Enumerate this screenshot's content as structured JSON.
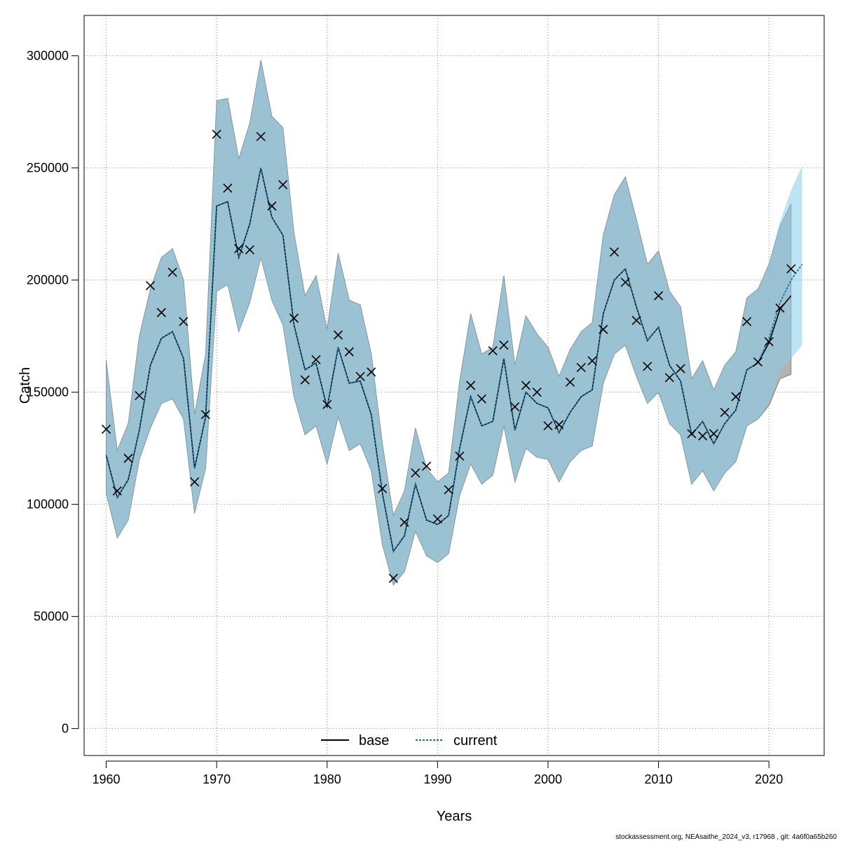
{
  "chart_data": {
    "type": "line",
    "title": "",
    "xlabel": "Years",
    "ylabel": "Catch",
    "xlim": [
      1958,
      2025
    ],
    "ylim": [
      -12000,
      318000
    ],
    "xticks": [
      1960,
      1970,
      1980,
      1990,
      2000,
      2010,
      2020
    ],
    "yticks": [
      0,
      50000,
      100000,
      150000,
      200000,
      250000,
      300000
    ],
    "grid": true,
    "legend": {
      "placement": "bottom-center",
      "entries": [
        "base",
        "current"
      ]
    },
    "x": [
      1960,
      1961,
      1962,
      1963,
      1964,
      1965,
      1966,
      1967,
      1968,
      1969,
      1970,
      1971,
      1972,
      1973,
      1974,
      1975,
      1976,
      1977,
      1978,
      1979,
      1980,
      1981,
      1982,
      1983,
      1984,
      1985,
      1986,
      1987,
      1988,
      1989,
      1990,
      1991,
      1992,
      1993,
      1994,
      1995,
      1996,
      1997,
      1998,
      1999,
      2000,
      2001,
      2002,
      2003,
      2004,
      2005,
      2006,
      2007,
      2008,
      2009,
      2010,
      2011,
      2012,
      2013,
      2014,
      2015,
      2016,
      2017,
      2018,
      2019,
      2020,
      2021,
      2022,
      2023
    ],
    "observed": [
      [
        1960,
        133500
      ],
      [
        1961,
        106000
      ],
      [
        1962,
        120500
      ],
      [
        1963,
        148500
      ],
      [
        1964,
        197500
      ],
      [
        1965,
        185500
      ],
      [
        1966,
        203500
      ],
      [
        1967,
        181500
      ],
      [
        1968,
        110000
      ],
      [
        1969,
        140000
      ],
      [
        1970,
        265000
      ],
      [
        1971,
        241000
      ],
      [
        1972,
        214000
      ],
      [
        1973,
        213500
      ],
      [
        1974,
        264000
      ],
      [
        1975,
        233000
      ],
      [
        1976,
        242500
      ],
      [
        1977,
        183000
      ],
      [
        1978,
        155500
      ],
      [
        1979,
        164500
      ],
      [
        1980,
        144500
      ],
      [
        1981,
        175500
      ],
      [
        1982,
        168000
      ],
      [
        1983,
        157000
      ],
      [
        1984,
        159000
      ],
      [
        1985,
        107000
      ],
      [
        1986,
        67000
      ],
      [
        1987,
        92000
      ],
      [
        1988,
        114000
      ],
      [
        1989,
        117000
      ],
      [
        1990,
        93500
      ],
      [
        1991,
        106500
      ],
      [
        1992,
        121500
      ],
      [
        1993,
        153000
      ],
      [
        1994,
        147000
      ],
      [
        1995,
        168500
      ],
      [
        1996,
        171000
      ],
      [
        1997,
        143500
      ],
      [
        1998,
        153000
      ],
      [
        1999,
        150000
      ],
      [
        2000,
        135000
      ],
      [
        2001,
        135500
      ],
      [
        2002,
        154500
      ],
      [
        2003,
        161000
      ],
      [
        2004,
        164000
      ],
      [
        2005,
        178000
      ],
      [
        2006,
        212500
      ],
      [
        2007,
        199000
      ],
      [
        2008,
        182000
      ],
      [
        2009,
        161500
      ],
      [
        2010,
        193000
      ],
      [
        2011,
        156500
      ],
      [
        2012,
        160500
      ],
      [
        2013,
        131500
      ],
      [
        2014,
        130500
      ],
      [
        2015,
        131500
      ],
      [
        2016,
        141000
      ],
      [
        2017,
        148000
      ],
      [
        2018,
        181500
      ],
      [
        2019,
        163500
      ],
      [
        2020,
        172500
      ],
      [
        2021,
        187500
      ],
      [
        2022,
        205000
      ]
    ],
    "series": [
      {
        "name": "base",
        "color": "#000000",
        "values": [
          122000,
          103000,
          111000,
          133000,
          162000,
          174000,
          177000,
          165000,
          116000,
          139000,
          233000,
          235000,
          210000,
          225000,
          250000,
          228000,
          220000,
          180000,
          160000,
          163000,
          143000,
          170000,
          154000,
          155000,
          140000,
          105000,
          79000,
          86000,
          109000,
          93000,
          91000,
          95000,
          125000,
          148000,
          135000,
          137000,
          165000,
          133000,
          150000,
          145000,
          143000,
          132000,
          141000,
          148000,
          151000,
          185000,
          200000,
          205000,
          188000,
          173000,
          179000,
          162000,
          155000,
          131000,
          137000,
          127000,
          136000,
          142000,
          160000,
          163000,
          172000,
          187000,
          193000,
          null
        ],
        "lower": [
          105000,
          85000,
          93000,
          120000,
          134000,
          145000,
          147000,
          138000,
          96000,
          116000,
          195000,
          198000,
          177000,
          190000,
          210000,
          191000,
          180000,
          148000,
          131000,
          135000,
          118000,
          139000,
          124000,
          127000,
          115000,
          82000,
          64000,
          70000,
          88000,
          77000,
          74000,
          78000,
          104000,
          118000,
          109000,
          113000,
          135000,
          110000,
          125000,
          121000,
          120000,
          110000,
          119000,
          124000,
          126000,
          154000,
          167000,
          171000,
          157000,
          145000,
          150000,
          136000,
          131000,
          109000,
          115000,
          106000,
          114000,
          119000,
          135000,
          138000,
          144000,
          156000,
          158000,
          null
        ],
        "upper": [
          164000,
          124000,
          136000,
          175000,
          196000,
          210000,
          214000,
          200000,
          140000,
          167000,
          280000,
          281000,
          254000,
          270000,
          298000,
          273000,
          268000,
          221000,
          193000,
          202000,
          178000,
          212000,
          191000,
          189000,
          167000,
          127000,
          95000,
          106000,
          134000,
          116000,
          110000,
          114000,
          155000,
          185000,
          167000,
          170000,
          202000,
          162000,
          184000,
          176000,
          170000,
          157000,
          169000,
          177000,
          181000,
          220000,
          238000,
          246000,
          227000,
          207000,
          213000,
          195000,
          188000,
          156000,
          164000,
          151000,
          162000,
          168000,
          192000,
          196000,
          207000,
          224000,
          234000,
          null
        ]
      },
      {
        "name": "current",
        "color": "#1a6f9a",
        "values": [
          122000,
          103000,
          111000,
          133000,
          162000,
          174000,
          177000,
          165000,
          116000,
          139000,
          233000,
          235000,
          210000,
          225000,
          250000,
          228000,
          220000,
          180000,
          160000,
          163000,
          143000,
          170000,
          154000,
          155000,
          140000,
          105000,
          79000,
          86000,
          109000,
          93000,
          91000,
          95000,
          125000,
          148000,
          135000,
          137000,
          165000,
          133000,
          150000,
          145000,
          143000,
          132000,
          141000,
          148000,
          151000,
          185000,
          200000,
          205000,
          188000,
          173000,
          179000,
          162000,
          155000,
          131000,
          137000,
          127000,
          136000,
          142000,
          160000,
          163000,
          174000,
          190000,
          200000,
          207000
        ],
        "lower": [
          105000,
          85000,
          93000,
          120000,
          134000,
          145000,
          147000,
          138000,
          96000,
          116000,
          195000,
          198000,
          177000,
          190000,
          210000,
          191000,
          180000,
          148000,
          131000,
          135000,
          118000,
          139000,
          124000,
          127000,
          115000,
          82000,
          64000,
          70000,
          88000,
          77000,
          74000,
          78000,
          104000,
          118000,
          109000,
          113000,
          135000,
          110000,
          125000,
          121000,
          120000,
          110000,
          119000,
          124000,
          126000,
          154000,
          167000,
          171000,
          157000,
          145000,
          150000,
          136000,
          131000,
          109000,
          115000,
          106000,
          114000,
          119000,
          135000,
          138000,
          145000,
          160000,
          165000,
          171000
        ],
        "upper": [
          164000,
          124000,
          136000,
          175000,
          196000,
          210000,
          214000,
          200000,
          140000,
          167000,
          280000,
          281000,
          254000,
          270000,
          298000,
          273000,
          268000,
          221000,
          193000,
          202000,
          178000,
          212000,
          191000,
          189000,
          167000,
          127000,
          95000,
          106000,
          134000,
          116000,
          110000,
          114000,
          155000,
          185000,
          167000,
          170000,
          202000,
          162000,
          184000,
          176000,
          170000,
          157000,
          169000,
          177000,
          181000,
          220000,
          238000,
          246000,
          227000,
          207000,
          213000,
          195000,
          188000,
          156000,
          164000,
          151000,
          162000,
          168000,
          192000,
          196000,
          208000,
          226000,
          240000,
          251000
        ]
      }
    ],
    "colors": {
      "base_band": "#9a9a9a",
      "current_band": "#87ceeb",
      "overlap_band": "#a5c3d4",
      "band_edge": "#808080",
      "grid": "#808080"
    }
  },
  "footer": "stockassessment.org, NEAsaithe_2024_v3, r17968 , git: 4a6f0a65b260"
}
